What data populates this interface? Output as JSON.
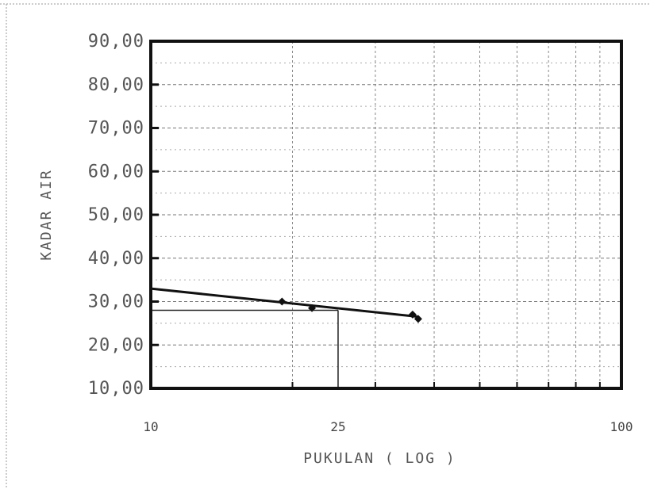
{
  "chart_data": {
    "type": "line",
    "xscale": "log",
    "xlim": [
      10,
      100
    ],
    "ylim": [
      10,
      90
    ],
    "xlabel": "PUKULAN ( LOG )",
    "ylabel": "KADAR AIR",
    "x_tick_labels": [
      {
        "value": 10,
        "label": "10"
      },
      {
        "value": 25,
        "label": "25"
      },
      {
        "value": 100,
        "label": "100"
      }
    ],
    "y_tick_labels": [
      "10,00",
      "20,00",
      "30,00",
      "40,00",
      "50,00",
      "60,00",
      "70,00",
      "80,00",
      "90,00"
    ],
    "y_tick_values": [
      10,
      20,
      30,
      40,
      50,
      60,
      70,
      80,
      90
    ],
    "grid": true,
    "series": [
      {
        "points": [
          {
            "x": 19,
            "y": 30.0
          },
          {
            "x": 22,
            "y": 28.5
          },
          {
            "x": 36,
            "y": 27.0
          },
          {
            "x": 37,
            "y": 26.0
          }
        ],
        "fit_line": [
          {
            "x": 10,
            "y": 33.0
          },
          {
            "x": 37,
            "y": 26.5
          }
        ]
      }
    ],
    "annotation": {
      "x": 25,
      "y": 28.0
    }
  }
}
